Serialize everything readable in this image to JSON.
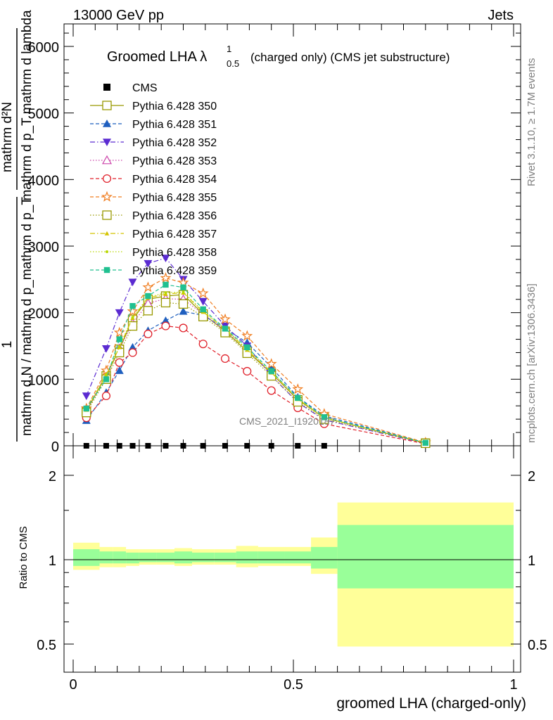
{
  "header": {
    "left": "13000 GeV pp",
    "right": "Jets"
  },
  "side": {
    "rivet": "Rivet 3.1.10, ≥ 1.7M events",
    "mcplots": "mcplots.cern.ch [arXiv:1306.3436]"
  },
  "watermark": "CMS_2021_I1920187",
  "ylabel_main": {
    "num_top": "1",
    "den_top": "mathrm d N / mathrm d p_mathrm d p_T",
    "num_bot": "mathrm d²N",
    "den_bot": "mathrm d p_T mathrm d lambda"
  },
  "ratio": {
    "ylabel": "Ratio to CMS",
    "yticks": [
      "0.5",
      "1",
      "2"
    ]
  },
  "chart_data": {
    "type": "line",
    "title": "Groomed LHA λ",
    "title_sup": "1",
    "title_sub": "0.5",
    "title_suffix": "(charged only) (CMS jet substructure)",
    "xlabel": "groomed LHA (charged-only)",
    "xlim": [
      0,
      1
    ],
    "ylim": [
      0,
      6300
    ],
    "xticks": [
      "0",
      "0.5",
      "1"
    ],
    "yticks": [
      "0",
      "1000",
      "2000",
      "3000",
      "4000",
      "5000",
      "6000"
    ],
    "x": [
      0.03,
      0.075,
      0.105,
      0.135,
      0.17,
      0.21,
      0.25,
      0.295,
      0.345,
      0.395,
      0.45,
      0.51,
      0.57,
      0.8
    ],
    "cms": {
      "name": "CMS",
      "x": [
        0.03,
        0.075,
        0.105,
        0.135,
        0.17,
        0.21,
        0.25,
        0.295,
        0.345,
        0.395,
        0.45,
        0.51,
        0.57
      ],
      "y": [
        0,
        0,
        0,
        0,
        0,
        0,
        0,
        0,
        0,
        0,
        0,
        0,
        0
      ]
    },
    "series": [
      {
        "name": "Pythia 6.428 350",
        "color": "#999900",
        "marker": "square-open",
        "dash": "solid",
        "values": [
          520,
          1050,
          1450,
          1900,
          2200,
          2250,
          2270,
          1980,
          1720,
          1420,
          1090,
          690,
          420,
          40
        ]
      },
      {
        "name": "Pythia 6.428 351",
        "color": "#1f5fbf",
        "marker": "triangle-up",
        "dash": "dashed",
        "values": [
          380,
          800,
          1130,
          1480,
          1730,
          1880,
          2020,
          1960,
          1760,
          1550,
          1180,
          730,
          450,
          45
        ]
      },
      {
        "name": "Pythia 6.428 352",
        "color": "#5b2bd1",
        "marker": "triangle-down",
        "dash": "dashdot",
        "values": [
          750,
          1460,
          2000,
          2460,
          2740,
          2820,
          2500,
          2170,
          1800,
          1500,
          1050,
          650,
          390,
          35
        ]
      },
      {
        "name": "Pythia 6.428 353",
        "color": "#cc44aa",
        "marker": "triangle-open",
        "dash": "dotted",
        "values": [
          520,
          1080,
          1460,
          1840,
          2140,
          2210,
          2200,
          1980,
          1730,
          1450,
          1090,
          700,
          420,
          40
        ]
      },
      {
        "name": "Pythia 6.428 354",
        "color": "#e0202a",
        "marker": "circle-open",
        "dash": "dashed",
        "values": [
          420,
          750,
          1250,
          1400,
          1680,
          1800,
          1770,
          1530,
          1310,
          1120,
          830,
          570,
          330,
          30
        ]
      },
      {
        "name": "Pythia 6.428 355",
        "color": "#f07d20",
        "marker": "star-open",
        "dash": "dashed",
        "values": [
          560,
          1130,
          1700,
          2020,
          2380,
          2520,
          2450,
          2290,
          1900,
          1650,
          1230,
          850,
          480,
          50
        ]
      },
      {
        "name": "Pythia 6.428 356",
        "color": "#999900",
        "marker": "square-open",
        "dash": "dotted",
        "values": [
          500,
          1000,
          1400,
          1800,
          2030,
          2150,
          2130,
          1940,
          1700,
          1390,
          1050,
          660,
          400,
          38
        ]
      },
      {
        "name": "Pythia 6.428 357",
        "color": "#d4c400",
        "marker": "tri-small",
        "dash": "dashdot",
        "values": [
          540,
          1060,
          1480,
          1920,
          2220,
          2280,
          2300,
          2010,
          1750,
          1440,
          1100,
          700,
          420,
          42
        ]
      },
      {
        "name": "Pythia 6.428 358",
        "color": "#b8d800",
        "marker": "dot",
        "dash": "dotted",
        "values": [
          550,
          1070,
          1490,
          1930,
          2230,
          2300,
          2310,
          2020,
          1760,
          1450,
          1110,
          710,
          425,
          42
        ]
      },
      {
        "name": "Pythia 6.428 359",
        "color": "#20c090",
        "marker": "square-filled",
        "dash": "dashed",
        "values": [
          560,
          1000,
          1600,
          2100,
          2250,
          2420,
          2380,
          2050,
          1760,
          1480,
          1120,
          720,
          430,
          44
        ]
      }
    ],
    "ratio_bands": {
      "edges": [
        0,
        0.06,
        0.09,
        0.12,
        0.15,
        0.19,
        0.23,
        0.27,
        0.32,
        0.37,
        0.42,
        0.48,
        0.54,
        0.6,
        1.0
      ],
      "inner_up": [
        1.09,
        1.07,
        1.07,
        1.06,
        1.06,
        1.06,
        1.07,
        1.06,
        1.06,
        1.07,
        1.07,
        1.07,
        1.11,
        1.33
      ],
      "inner_down": [
        0.95,
        0.97,
        0.97,
        0.97,
        0.98,
        0.98,
        0.97,
        0.98,
        0.98,
        0.97,
        0.97,
        0.97,
        0.93,
        0.79
      ],
      "outer_up": [
        1.15,
        1.11,
        1.11,
        1.09,
        1.09,
        1.09,
        1.1,
        1.09,
        1.09,
        1.12,
        1.11,
        1.11,
        1.2,
        1.6
      ],
      "outer_down": [
        0.92,
        0.94,
        0.94,
        0.95,
        0.96,
        0.96,
        0.95,
        0.96,
        0.96,
        0.94,
        0.95,
        0.95,
        0.89,
        0.49
      ]
    }
  }
}
